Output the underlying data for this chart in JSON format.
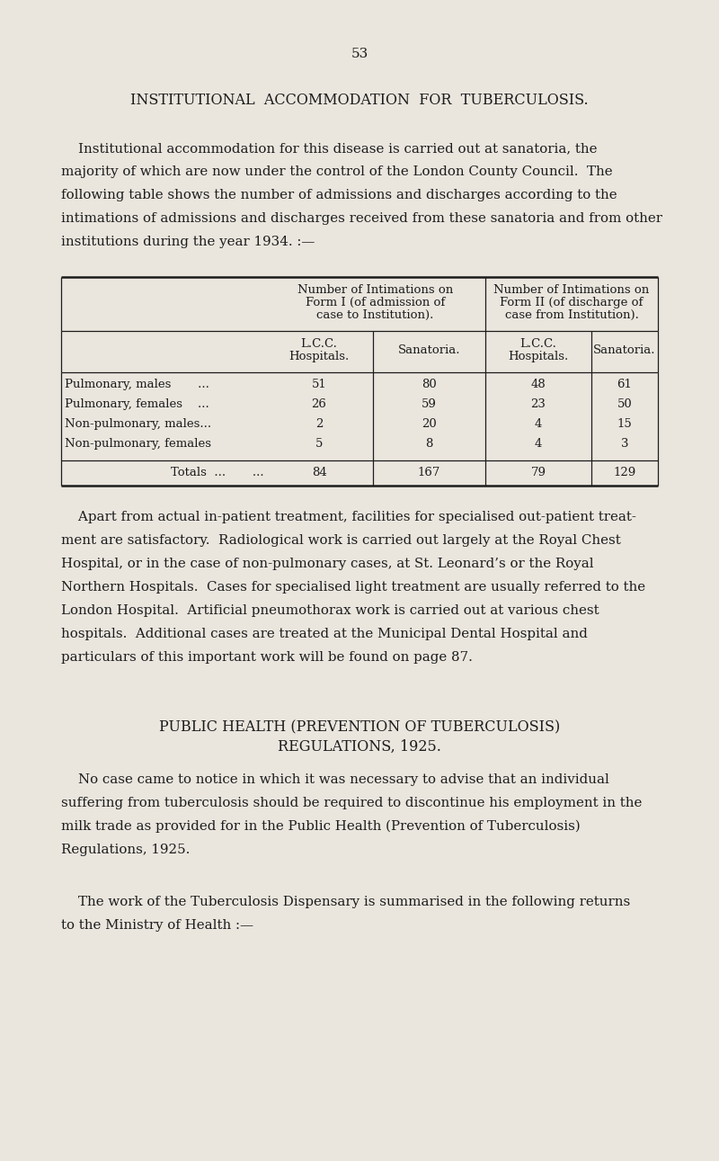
{
  "page_number": "53",
  "bg_color": "#eae6de",
  "text_color": "#1c1c1c",
  "title": "INSTITUTIONAL  ACCOMMODATION  FOR  TUBERCULOSIS.",
  "para1_lines": [
    "    Institutional accommodation for this disease is carried out at sanatoria, the",
    "majority of which are now under the control of the London County Council.  The",
    "following table shows the number of admissions and discharges according to the",
    "intimations of admissions and discharges received from these sanatoria and from other",
    "institutions during the year 1934. :—"
  ],
  "table": {
    "form1_header": [
      "Number of Intimations on",
      "Form I (of admission of",
      "case to Institution)."
    ],
    "form2_header": [
      "Number of Intimations on",
      "Form II (of discharge of",
      "case from Institution)."
    ],
    "col_header_bottom": [
      "L.C.C.\nHospitals.",
      "Sanatoria.",
      "L.C.C.\nHospitals.",
      "Sanatoria."
    ],
    "rows": [
      [
        "Pulmonary, males       ...",
        "51",
        "80",
        "48",
        "61"
      ],
      [
        "Pulmonary, females    ...",
        "26",
        "59",
        "23",
        "50"
      ],
      [
        "Non-pulmonary, males...",
        "2",
        "20",
        "4",
        "15"
      ],
      [
        "Non-pulmonary, females",
        "5",
        "8",
        "4",
        "3"
      ]
    ],
    "totals_label": "Totals  ...       ...",
    "totals_values": [
      "84",
      "167",
      "79",
      "129"
    ]
  },
  "para2_lines": [
    "    Apart from actual in-patient treatment, facilities for specialised out-patient treat-",
    "ment are satisfactory.  Radiological work is carried out largely at the Royal Chest",
    "Hospital, or in the case of non-pulmonary cases, at St. Leonard’s or the Royal",
    "Northern Hospitals.  Cases for specialised light treatment are usually referred to the",
    "London Hospital.  Artificial pneumothorax work is carried out at various chest",
    "hospitals.  Additional cases are treated at the Municipal Dental Hospital and",
    "particulars of this important work will be found on page 87."
  ],
  "section_title1": "PUBLIC HEALTH (PREVENTION OF TUBERCULOSIS)",
  "section_title2": "REGULATIONS, 1925.",
  "para3_lines": [
    "    No case came to notice in which it was necessary to advise that an individual",
    "suffering from tuberculosis should be required to discontinue his employment in the",
    "milk trade as provided for in the Public Health (Prevention of Tuberculosis)",
    "Regulations, 1925."
  ],
  "para4_lines": [
    "    The work of the Tuberculosis Dispensary is summarised in the following returns",
    "to the Ministry of Health :—"
  ]
}
